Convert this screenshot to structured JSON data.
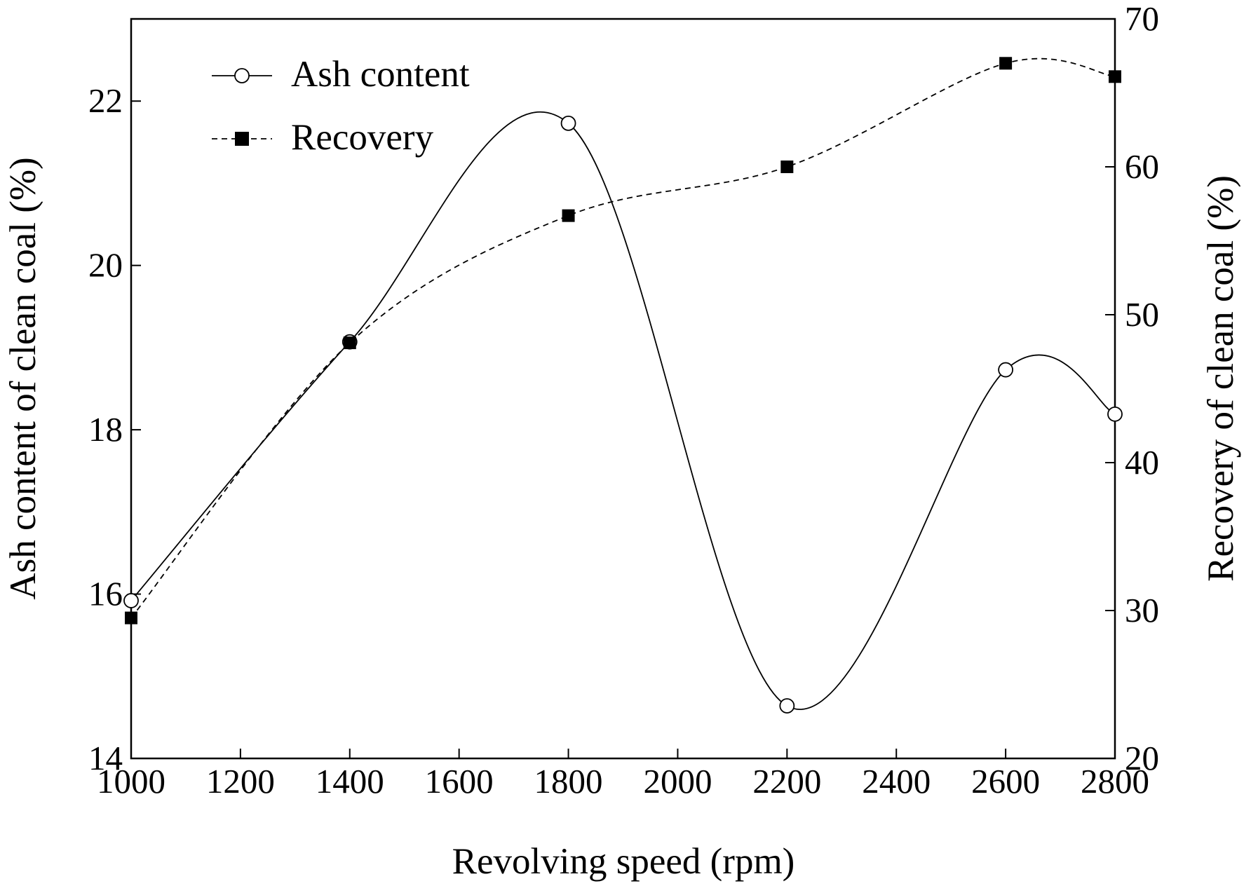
{
  "chart_data": {
    "type": "line",
    "xlabel": "Revolving speed (rpm)",
    "ylabel_left": "Ash content of clean coal  (%)",
    "ylabel_right": "Recovery of clean coal (%)",
    "xlim": [
      1000,
      2800
    ],
    "ylim_left": [
      14,
      23
    ],
    "ylim_right": [
      20,
      70
    ],
    "x_ticks": [
      1000,
      1200,
      1400,
      1600,
      1800,
      2000,
      2200,
      2400,
      2600,
      2800
    ],
    "y_left_ticks": [
      14,
      16,
      18,
      20,
      22
    ],
    "y_right_ticks": [
      20,
      30,
      40,
      50,
      60,
      70
    ],
    "grid": false,
    "legend_position": "top-left",
    "series": [
      {
        "name": "Ash content",
        "axis": "left",
        "marker": "open-circle",
        "line_style": "solid",
        "smooth": true,
        "x": [
          1000,
          1400,
          1800,
          2200,
          2600,
          2800
        ],
        "values": [
          15.92,
          19.07,
          21.73,
          14.64,
          18.73,
          18.19
        ]
      },
      {
        "name": "Recovery",
        "axis": "right",
        "marker": "filled-square",
        "line_style": "dashed",
        "smooth": true,
        "x": [
          1000,
          1400,
          1800,
          2200,
          2600,
          2800
        ],
        "values": [
          29.5,
          48.1,
          56.7,
          60.0,
          67.0,
          66.1
        ]
      }
    ]
  }
}
